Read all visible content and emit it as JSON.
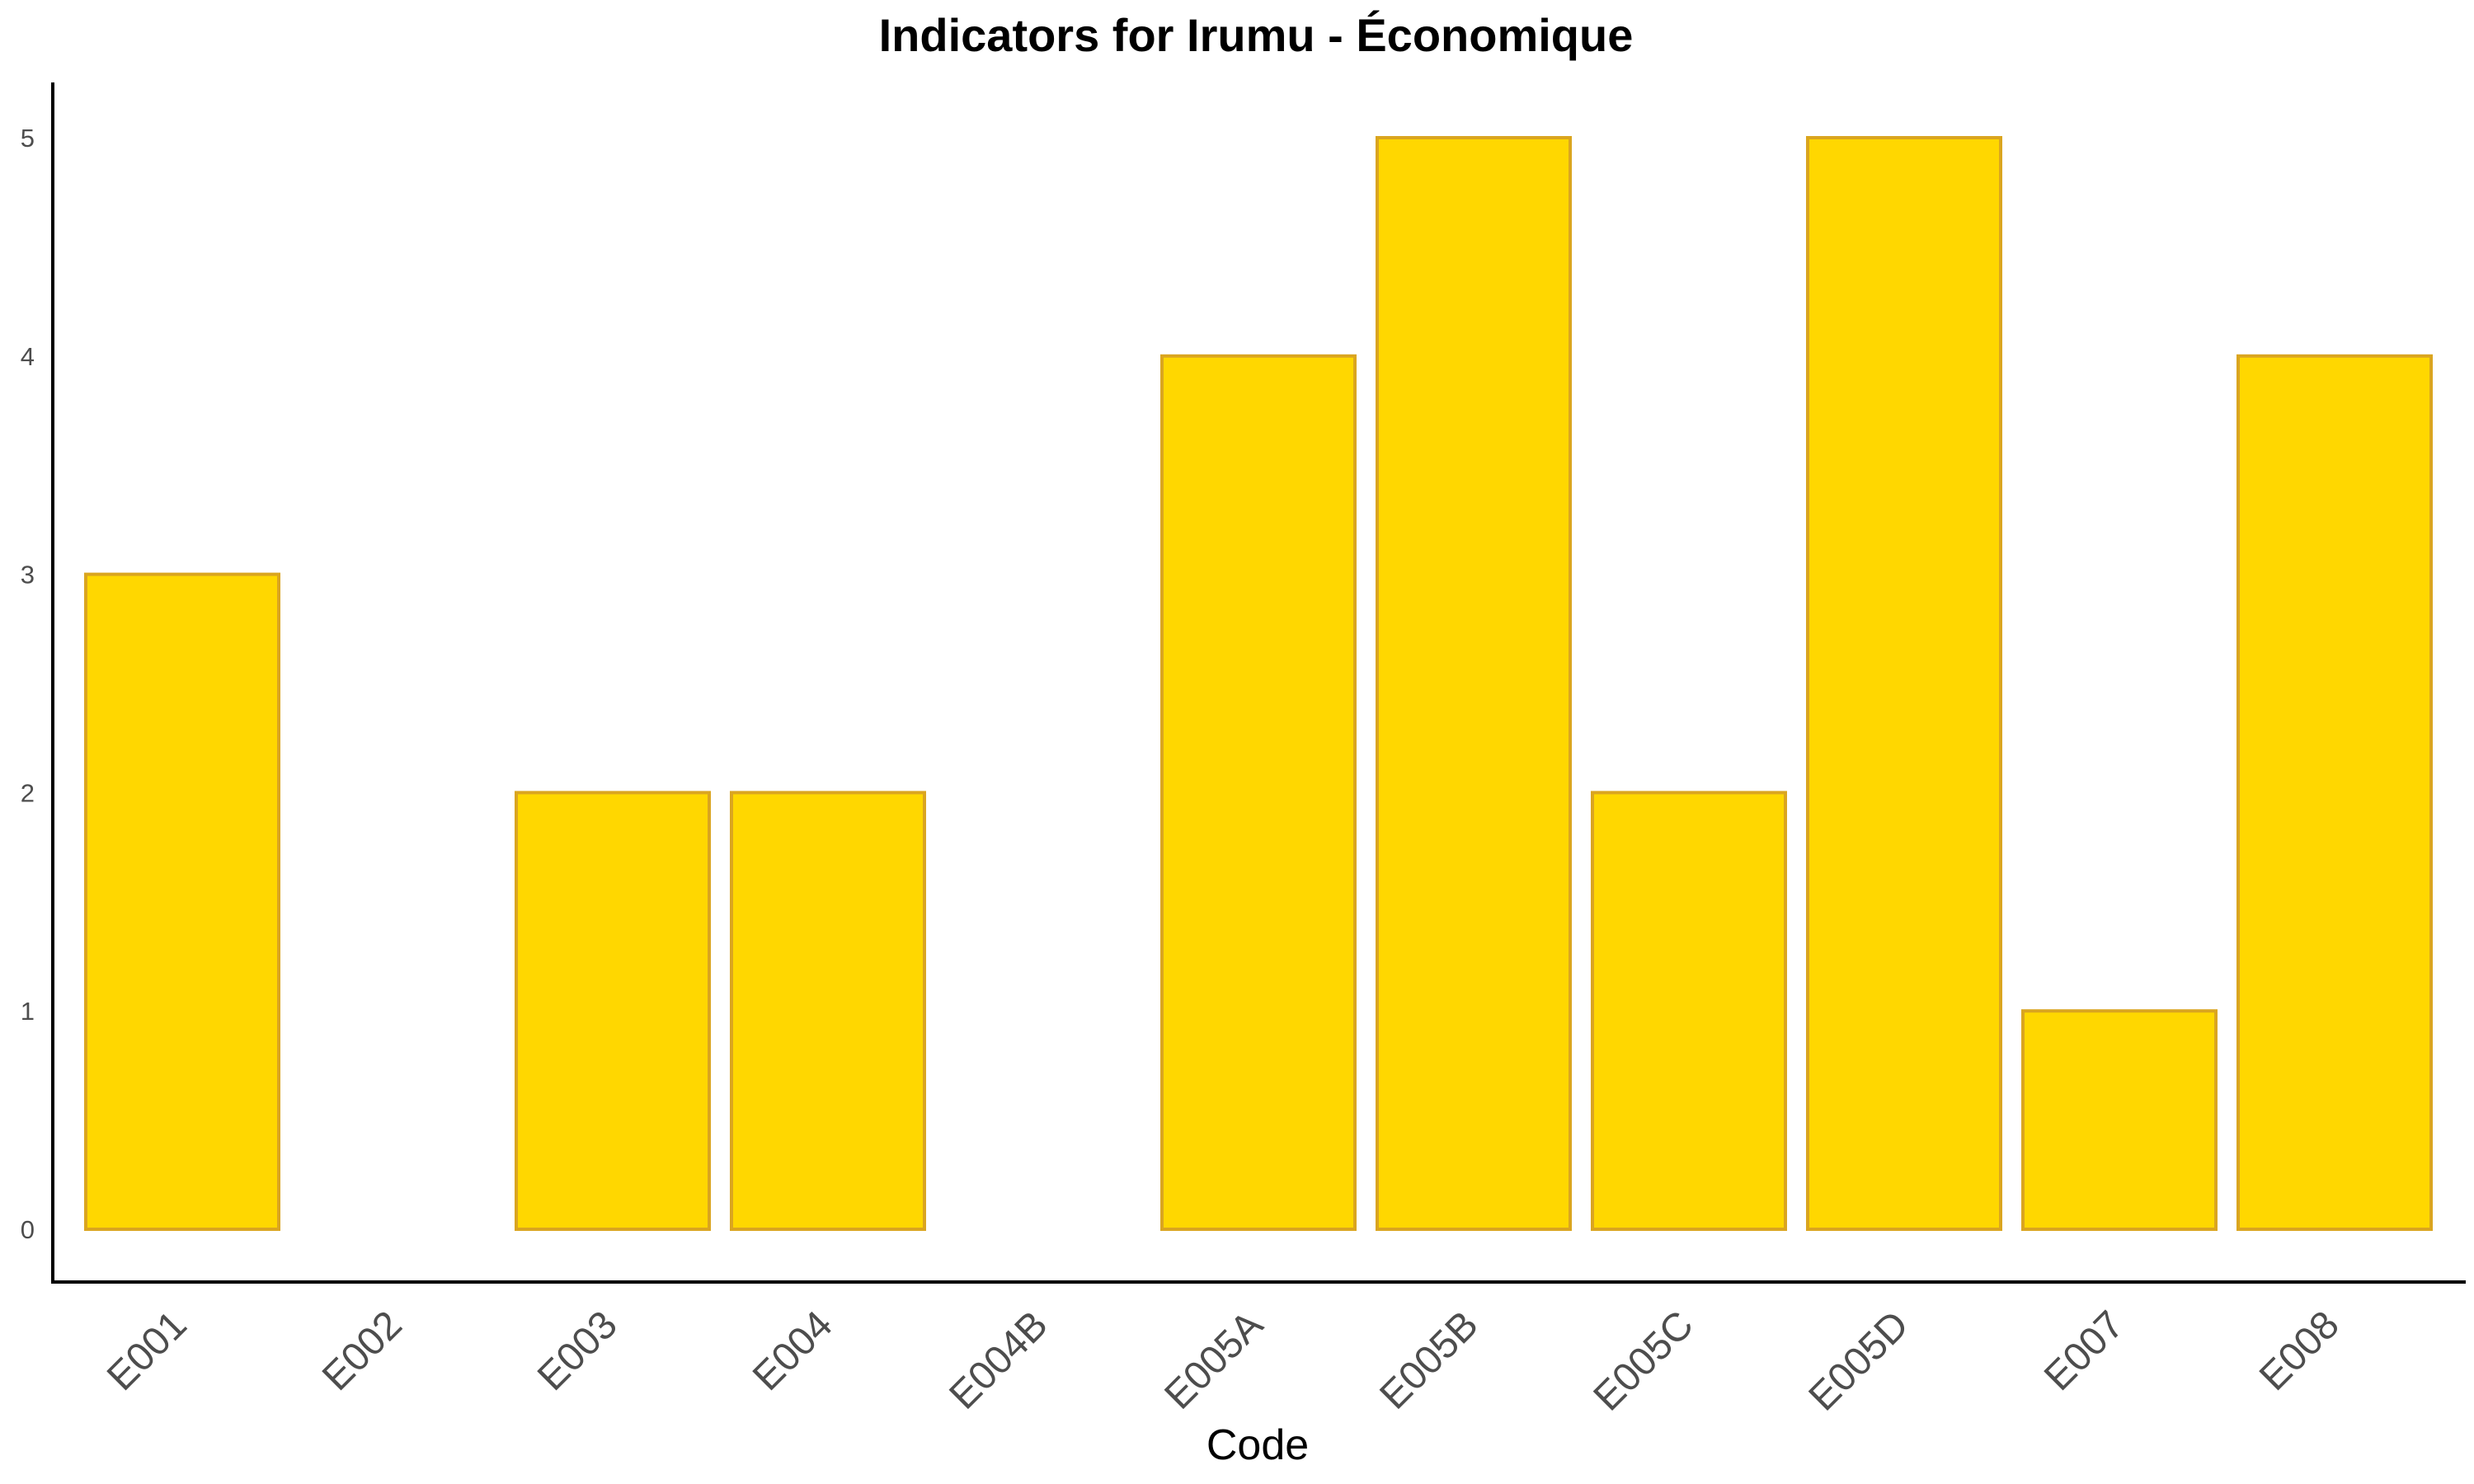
{
  "chart_data": {
    "type": "bar",
    "title": "Indicators for Irumu - Économique",
    "xlabel": "Code",
    "ylabel": "",
    "categories": [
      "E001",
      "E002",
      "E003",
      "E004",
      "E004B",
      "E005A",
      "E005B",
      "E005C",
      "E005D",
      "E007",
      "E008"
    ],
    "values": [
      3,
      0,
      2,
      2,
      0,
      4,
      5,
      2,
      5,
      1,
      4
    ],
    "ylim": [
      0,
      5
    ],
    "yticks": [
      "0",
      "1",
      "2",
      "3",
      "4",
      "5"
    ],
    "grid": false,
    "legend": "none",
    "colors": {
      "bar_fill": "#FFD700",
      "bar_stroke": "#DAA520",
      "axis": "#000000",
      "tick_text": "#4d4d4d"
    }
  }
}
